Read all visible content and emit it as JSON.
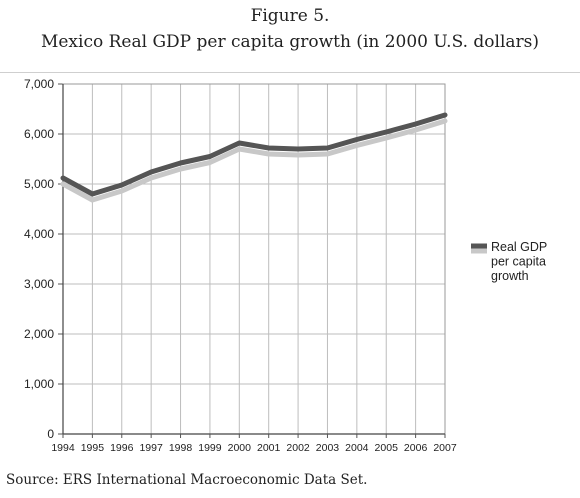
{
  "figure_label": "Figure 5.",
  "title": "Mexico Real GDP per capita growth (in 2000 U.S. dollars)",
  "source": "Source: ERS International Macroeconomic Data Set.",
  "chart_data": {
    "type": "line",
    "x": [
      "1994",
      "1995",
      "1996",
      "1997",
      "1998",
      "1999",
      "2000",
      "2001",
      "2002",
      "2003",
      "2004",
      "2005",
      "2006",
      "2007"
    ],
    "series": [
      {
        "name": "Real GDP per capita growth",
        "values": [
          5120,
          4800,
          4980,
          5240,
          5420,
          5550,
          5820,
          5720,
          5700,
          5720,
          5890,
          6040,
          6200,
          6380
        ],
        "color": "#555555"
      }
    ],
    "ylim": [
      0,
      7000
    ],
    "yticks": [
      "0",
      "1,000",
      "2,000",
      "3,000",
      "4,000",
      "5,000",
      "6,000",
      "7,000"
    ],
    "grid": true,
    "legend": "right",
    "legend_lines": [
      "Real GDP",
      "per capita",
      "growth"
    ]
  }
}
